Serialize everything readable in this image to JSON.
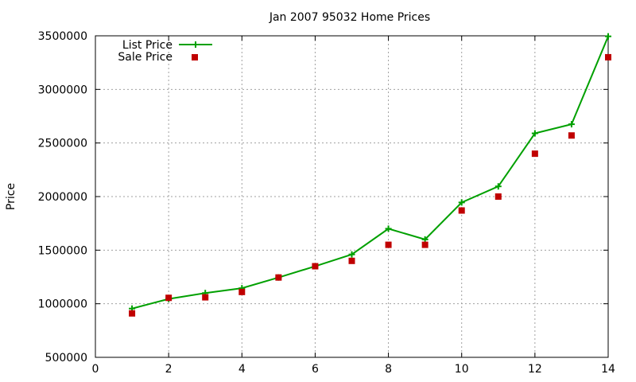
{
  "chart_data": {
    "type": "line",
    "title": "Jan 2007 95032 Home Prices",
    "xlabel": "",
    "ylabel": "Price",
    "xlim": [
      0,
      14
    ],
    "ylim": [
      500000,
      3500000
    ],
    "xticks": [
      0,
      2,
      4,
      6,
      8,
      10,
      12,
      14
    ],
    "yticks": [
      500000,
      1000000,
      1500000,
      2000000,
      2500000,
      3000000,
      3500000
    ],
    "grid": true,
    "legend_position": "top-left",
    "x": [
      1,
      2,
      3,
      4,
      5,
      6,
      7,
      8,
      9,
      10,
      11,
      12,
      13,
      14
    ],
    "series": [
      {
        "name": "List Price",
        "style": "line-with-plus-markers",
        "color": "#00a000",
        "values": [
          955000,
          1045000,
          1100000,
          1145000,
          1245000,
          1350000,
          1460000,
          1700000,
          1600000,
          1945000,
          2095000,
          2590000,
          2675000,
          3495000
        ]
      },
      {
        "name": "Sale Price",
        "style": "square-points",
        "color": "#c00000",
        "values": [
          910000,
          1055000,
          1060000,
          1110000,
          1245000,
          1350000,
          1400000,
          1550000,
          1550000,
          1870000,
          2000000,
          2400000,
          2570000,
          3300000
        ]
      }
    ]
  }
}
